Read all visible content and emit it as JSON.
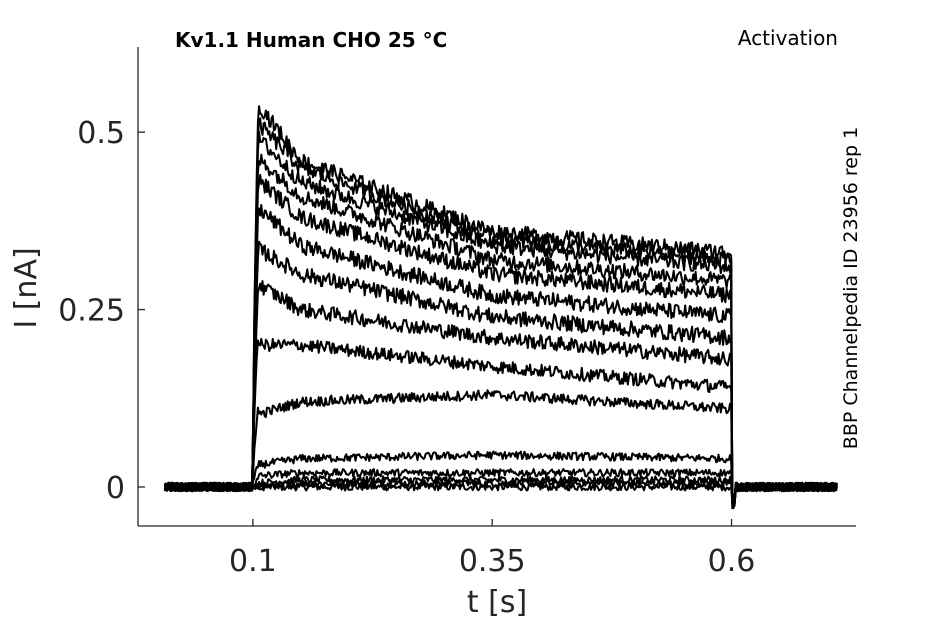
{
  "chart_data": {
    "type": "line",
    "title": "Kv1.1  Human  CHO  25 °C",
    "protocol": "Activation",
    "source": "BBP Channelpedia ID 23956 rep 1",
    "xlabel": "t [s]",
    "ylabel": "I [nA]",
    "xlim": [
      -0.02,
      0.73
    ],
    "ylim": [
      -0.055,
      0.62
    ],
    "xticks": [
      0.1,
      0.35,
      0.6
    ],
    "xtick_labels": [
      "0.1",
      "0.35",
      "0.6"
    ],
    "yticks": [
      0,
      0.25,
      0.5
    ],
    "ytick_labels": [
      "0",
      "0.25",
      "0.5"
    ],
    "grid": false,
    "legend": "none",
    "line_color": "#000000",
    "pulse_start": 0.1,
    "pulse_end": 0.6,
    "t_start": 0.008,
    "t_end": 0.71,
    "series": [
      {
        "peak": 0.0,
        "t": [
          0.1,
          0.15,
          0.35,
          0.6
        ],
        "values": [
          0.0,
          0.0,
          0.0,
          0.0
        ]
      },
      {
        "peak": 0.0,
        "t": [
          0.1,
          0.15,
          0.35,
          0.6
        ],
        "values": [
          0.0,
          0.005,
          0.005,
          0.005
        ]
      },
      {
        "peak": 0.003,
        "t": [
          0.1,
          0.15,
          0.35,
          0.6
        ],
        "values": [
          0.005,
          0.01,
          0.01,
          0.01
        ]
      },
      {
        "peak": 0.01,
        "t": [
          0.1,
          0.15,
          0.35,
          0.6
        ],
        "values": [
          0.015,
          0.02,
          0.02,
          0.02
        ]
      },
      {
        "peak": 0.03,
        "t": [
          0.1,
          0.15,
          0.35,
          0.6
        ],
        "values": [
          0.03,
          0.04,
          0.045,
          0.04
        ]
      },
      {
        "peak": 0.12,
        "t": [
          0.1,
          0.15,
          0.35,
          0.6
        ],
        "values": [
          0.1,
          0.12,
          0.13,
          0.11
        ]
      },
      {
        "peak": 0.23,
        "t": [
          0.1,
          0.15,
          0.35,
          0.6
        ],
        "values": [
          0.2,
          0.2,
          0.17,
          0.14
        ]
      },
      {
        "peak": 0.3,
        "t": [
          0.1,
          0.15,
          0.35,
          0.6
        ],
        "values": [
          0.29,
          0.25,
          0.21,
          0.18
        ]
      },
      {
        "peak": 0.35,
        "t": [
          0.1,
          0.15,
          0.35,
          0.6
        ],
        "values": [
          0.34,
          0.3,
          0.24,
          0.21
        ]
      },
      {
        "peak": 0.41,
        "t": [
          0.1,
          0.15,
          0.35,
          0.6
        ],
        "values": [
          0.4,
          0.34,
          0.27,
          0.24
        ]
      },
      {
        "peak": 0.45,
        "t": [
          0.1,
          0.15,
          0.35,
          0.6
        ],
        "values": [
          0.44,
          0.38,
          0.3,
          0.27
        ]
      },
      {
        "peak": 0.48,
        "t": [
          0.1,
          0.15,
          0.35,
          0.6
        ],
        "values": [
          0.47,
          0.41,
          0.32,
          0.29
        ]
      },
      {
        "peak": 0.51,
        "t": [
          0.1,
          0.15,
          0.35,
          0.6
        ],
        "values": [
          0.5,
          0.43,
          0.34,
          0.31
        ]
      },
      {
        "peak": 0.53,
        "t": [
          0.1,
          0.15,
          0.35,
          0.6
        ],
        "values": [
          0.52,
          0.45,
          0.35,
          0.32
        ]
      },
      {
        "peak": 0.555,
        "t": [
          0.1,
          0.15,
          0.35,
          0.6
        ],
        "values": [
          0.55,
          0.46,
          0.36,
          0.33
        ]
      }
    ]
  }
}
